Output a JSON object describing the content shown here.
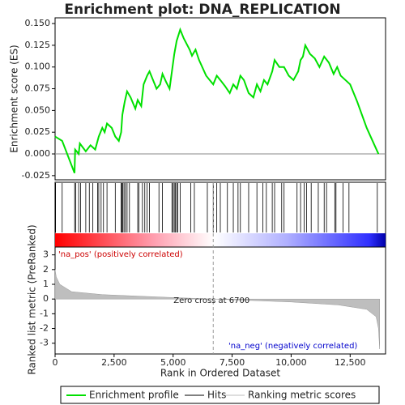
{
  "chart_data": {
    "type": "gsea",
    "title": "Enrichment plot: DNA_REPLICATION",
    "xlabel": "Rank in Ordered Dataset",
    "ylabel": "Enrichment score (ES)",
    "xlim": [
      0,
      14000
    ],
    "xticks": [
      0,
      {
        "value": 2500,
        "label": "2,500"
      },
      {
        "value": 5000,
        "label": "5,000"
      },
      {
        "value": 7500,
        "label": "7,500"
      },
      {
        "value": 10000,
        "label": "10,000"
      },
      {
        "value": 12500,
        "label": "12,500"
      }
    ],
    "ylim": [
      -0.0298,
      0.1566
    ],
    "yticks": [
      -0.025,
      {
        "value": 0,
        "label": "0.000"
      },
      0.025,
      {
        "value": 0.05,
        "label": "0.050"
      },
      0.075,
      {
        "value": 0.1,
        "label": "0.100"
      },
      0.125,
      {
        "value": 0.15,
        "label": "0.150"
      }
    ],
    "series": [
      {
        "name": "Enrichment profile",
        "color": "#00e000",
        "x": [
          0,
          300,
          824,
          850,
          1000,
          1050,
          1300,
          1500,
          1700,
          1850,
          2000,
          2100,
          2200,
          2400,
          2550,
          2700,
          2800,
          2850,
          2950,
          3050,
          3200,
          3400,
          3500,
          3650,
          3750,
          3900,
          4000,
          4150,
          4300,
          4450,
          4550,
          4700,
          4850,
          4950,
          5050,
          5150,
          5300,
          5450,
          5700,
          5800,
          5950,
          6100,
          6400,
          6550,
          6700,
          6850,
          7000,
          7200,
          7400,
          7550,
          7700,
          7850,
          8000,
          8200,
          8400,
          8550,
          8700,
          8850,
          9000,
          9200,
          9300,
          9500,
          9700,
          9900,
          10100,
          10300,
          10400,
          10500,
          10600,
          10800,
          11000,
          11200,
          11400,
          11600,
          11800,
          11950,
          12100,
          12300,
          12500,
          12800,
          13200,
          13500,
          13700
        ],
        "values": [
          0.02,
          0.015,
          -0.022,
          0.005,
          0.0,
          0.012,
          0.003,
          0.01,
          0.005,
          0.02,
          0.03,
          0.025,
          0.035,
          0.03,
          0.02,
          0.015,
          0.025,
          0.045,
          0.06,
          0.072,
          0.065,
          0.052,
          0.062,
          0.055,
          0.08,
          0.09,
          0.095,
          0.085,
          0.075,
          0.08,
          0.092,
          0.083,
          0.075,
          0.095,
          0.115,
          0.13,
          0.143,
          0.133,
          0.12,
          0.113,
          0.12,
          0.108,
          0.09,
          0.085,
          0.08,
          0.09,
          0.085,
          0.078,
          0.07,
          0.08,
          0.075,
          0.09,
          0.085,
          0.07,
          0.065,
          0.08,
          0.072,
          0.085,
          0.08,
          0.095,
          0.108,
          0.1,
          0.1,
          0.09,
          0.085,
          0.095,
          0.108,
          0.112,
          0.125,
          0.115,
          0.11,
          0.1,
          0.112,
          0.105,
          0.092,
          0.1,
          0.09,
          0.085,
          0.08,
          0.06,
          0.03,
          0.012,
          0.0
        ]
      }
    ],
    "hits": {
      "name": "Hits",
      "color": "#000000",
      "x": [
        20,
        300,
        830,
        870,
        1000,
        1080,
        1300,
        1450,
        1600,
        1800,
        1850,
        1950,
        2050,
        2200,
        2550,
        2800,
        2830,
        2870,
        2920,
        2980,
        3050,
        3150,
        3500,
        3550,
        3700,
        3800,
        3900,
        4000,
        4400,
        4550,
        4950,
        5000,
        5050,
        5100,
        5150,
        5200,
        5300,
        5750,
        5900,
        6450,
        6700,
        6850,
        7000,
        7300,
        7550,
        7750,
        7850,
        8200,
        8550,
        8800,
        8950,
        9200,
        9300,
        9600,
        9700,
        10250,
        10400,
        10550,
        10650,
        10850,
        11150,
        11400,
        11500,
        11850,
        11900,
        12200,
        12450,
        13650
      ]
    },
    "metric": {
      "name": "Ranking metric scores",
      "color": "#bebebe",
      "ylabel": "Ranked list metric (PreRanked)",
      "ylim": [
        -3.73,
        3.53
      ],
      "yticks": [
        -3,
        -2,
        -1,
        0,
        1,
        2,
        3
      ],
      "x": [
        0,
        50,
        200,
        700,
        2000,
        5000,
        6700,
        10000,
        12000,
        13200,
        13600,
        13700,
        13750
      ],
      "values": [
        2.0,
        1.5,
        1.0,
        0.5,
        0.3,
        0.1,
        0.0,
        -0.2,
        -0.4,
        -0.7,
        -1.2,
        -2.0,
        -3.4
      ]
    },
    "pos_label": "'na_pos' (positively correlated)",
    "neg_label": "'na_neg' (negatively correlated)",
    "zero_cross": {
      "value": 6700,
      "label": "Zero cross at 6700"
    }
  }
}
